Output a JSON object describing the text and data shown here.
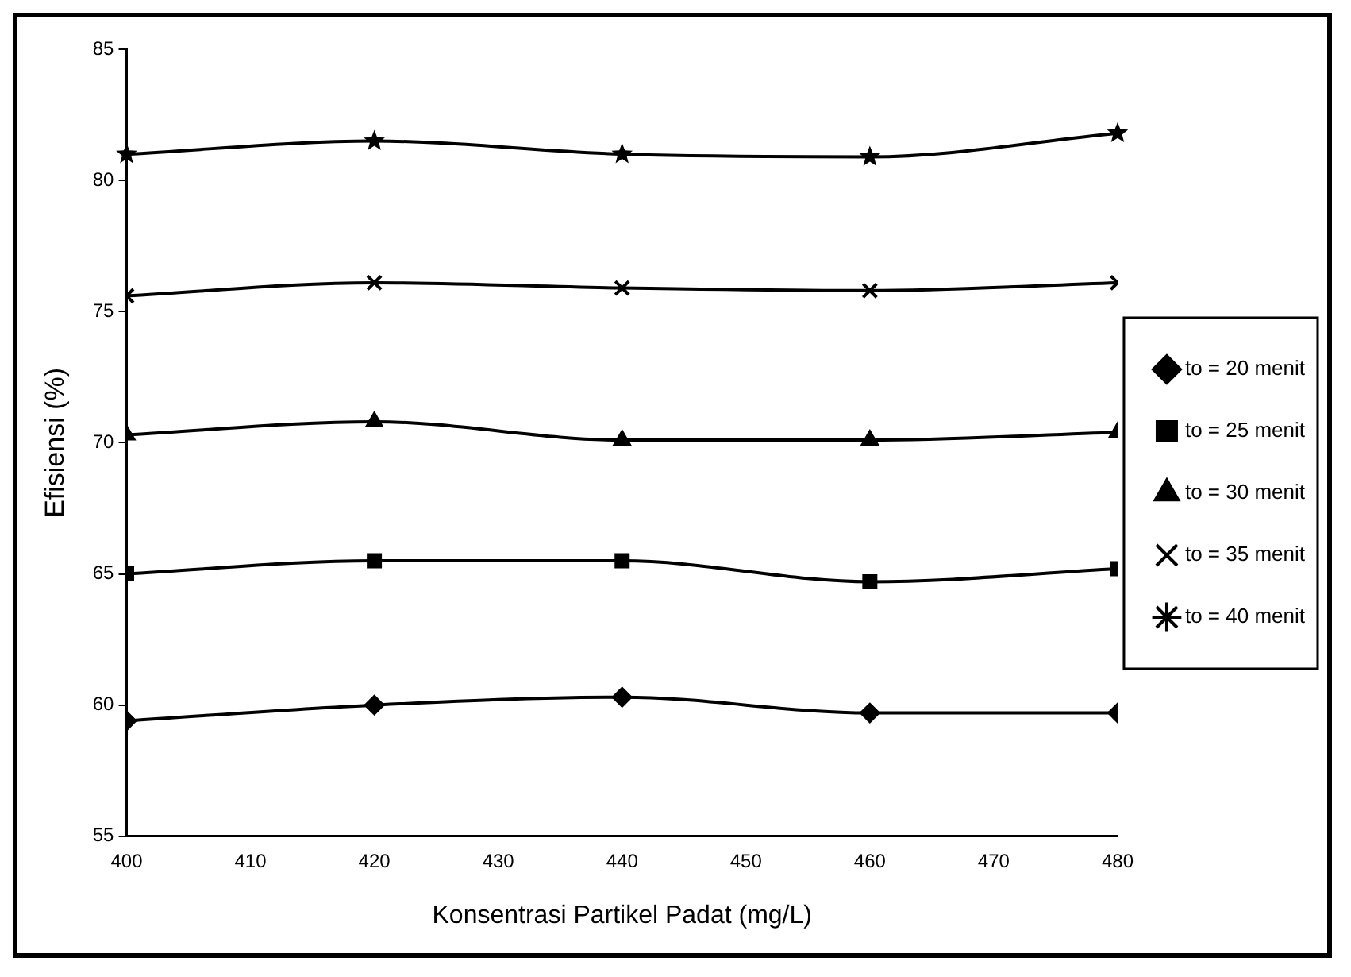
{
  "chart_data": {
    "type": "line",
    "xlabel": "Konsentrasi Partikel Padat (mg/L)",
    "ylabel": "Efisiensi (%)",
    "x": [
      400,
      420,
      440,
      460,
      480
    ],
    "series": [
      {
        "name": "to = 20 menit",
        "color": "#000000",
        "marker": "diamond",
        "values": [
          59.4,
          60.0,
          60.3,
          59.7,
          59.7
        ]
      },
      {
        "name": "to = 25 menit",
        "color": "#000000",
        "marker": "square",
        "values": [
          65.0,
          65.5,
          65.5,
          64.7,
          65.2
        ]
      },
      {
        "name": "to = 30 menit",
        "color": "#000000",
        "marker": "triangle",
        "values": [
          70.3,
          70.8,
          70.1,
          70.1,
          70.4
        ]
      },
      {
        "name": "to = 35 menit",
        "color": "#000000",
        "marker": "cross",
        "values": [
          75.6,
          76.1,
          75.9,
          75.8,
          76.1
        ]
      },
      {
        "name": "to = 40 menit",
        "color": "#000000",
        "marker": "star",
        "values": [
          81.0,
          81.5,
          81.0,
          80.9,
          81.8
        ]
      }
    ],
    "xlim": [
      400,
      480
    ],
    "xticks": [
      400,
      410,
      420,
      430,
      440,
      450,
      460,
      470,
      480
    ],
    "ylim": [
      55,
      85
    ],
    "yticks": [
      55,
      60,
      65,
      70,
      75,
      80,
      85
    ],
    "grid": false,
    "legend": "right",
    "line_style": "solid"
  }
}
